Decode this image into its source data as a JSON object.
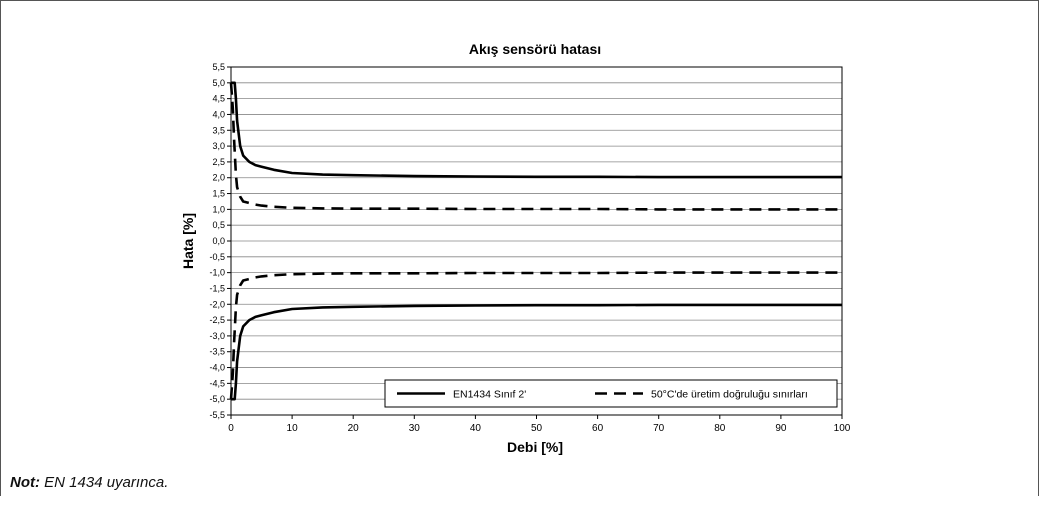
{
  "chart_data": {
    "type": "line",
    "title": "Akış sensörü hatası",
    "xlabel": "Debi [%]",
    "ylabel": "Hata [%]",
    "xlim": [
      0,
      100
    ],
    "ylim": [
      -5.5,
      5.5
    ],
    "x_ticks": [
      "0",
      "10",
      "20",
      "30",
      "40",
      "50",
      "60",
      "70",
      "80",
      "90",
      "100"
    ],
    "y_ticks": [
      "5,5",
      "5,0",
      "4,5",
      "4,0",
      "3,5",
      "3,0",
      "2,5",
      "2,0",
      "1,5",
      "1,0",
      "0,5",
      "0,0",
      "-0,5",
      "-1,0",
      "-1,5",
      "-2,0",
      "-2,5",
      "-3,0",
      "-3,5",
      "-4,0",
      "-4,5",
      "-5,0",
      "-5,5"
    ],
    "grid": "horizontal",
    "legend_position": "bottom-right",
    "series": [
      {
        "name": "EN1434 Sınıf 2'",
        "style": "solid",
        "x": [
          0,
          0.4,
          0.6,
          0.8,
          1,
          1.5,
          2,
          3,
          4,
          5,
          7,
          10,
          15,
          20,
          30,
          40,
          50,
          60,
          70,
          80,
          90,
          100
        ],
        "upper": [
          5.0,
          5.0,
          5.0,
          4.5,
          3.8,
          3.0,
          2.7,
          2.5,
          2.4,
          2.35,
          2.25,
          2.15,
          2.1,
          2.08,
          2.05,
          2.04,
          2.03,
          2.03,
          2.02,
          2.02,
          2.02,
          2.02
        ],
        "lower": [
          -5.0,
          -5.0,
          -5.0,
          -4.5,
          -3.8,
          -3.0,
          -2.7,
          -2.5,
          -2.4,
          -2.35,
          -2.25,
          -2.15,
          -2.1,
          -2.08,
          -2.05,
          -2.04,
          -2.03,
          -2.03,
          -2.02,
          -2.02,
          -2.02,
          -2.02
        ]
      },
      {
        "name": "50°C'de üretim doğruluğu sınırları",
        "style": "dashed",
        "x": [
          0,
          0.3,
          0.5,
          0.8,
          1,
          1.5,
          2,
          3,
          4,
          5,
          7,
          10,
          15,
          20,
          30,
          40,
          50,
          60,
          70,
          80,
          90,
          100
        ],
        "upper": [
          5.0,
          4.2,
          3.2,
          2.1,
          1.7,
          1.4,
          1.25,
          1.2,
          1.15,
          1.12,
          1.08,
          1.05,
          1.03,
          1.02,
          1.02,
          1.01,
          1.01,
          1.01,
          1.0,
          1.0,
          1.0,
          1.0
        ],
        "lower": [
          -5.0,
          -4.2,
          -3.2,
          -2.1,
          -1.7,
          -1.4,
          -1.25,
          -1.2,
          -1.15,
          -1.12,
          -1.08,
          -1.05,
          -1.03,
          -1.02,
          -1.02,
          -1.01,
          -1.01,
          -1.01,
          -1.0,
          -1.0,
          -1.0,
          -1.0
        ]
      }
    ]
  },
  "note": {
    "label": "Not:",
    "text": " EN 1434 uyarınca."
  }
}
